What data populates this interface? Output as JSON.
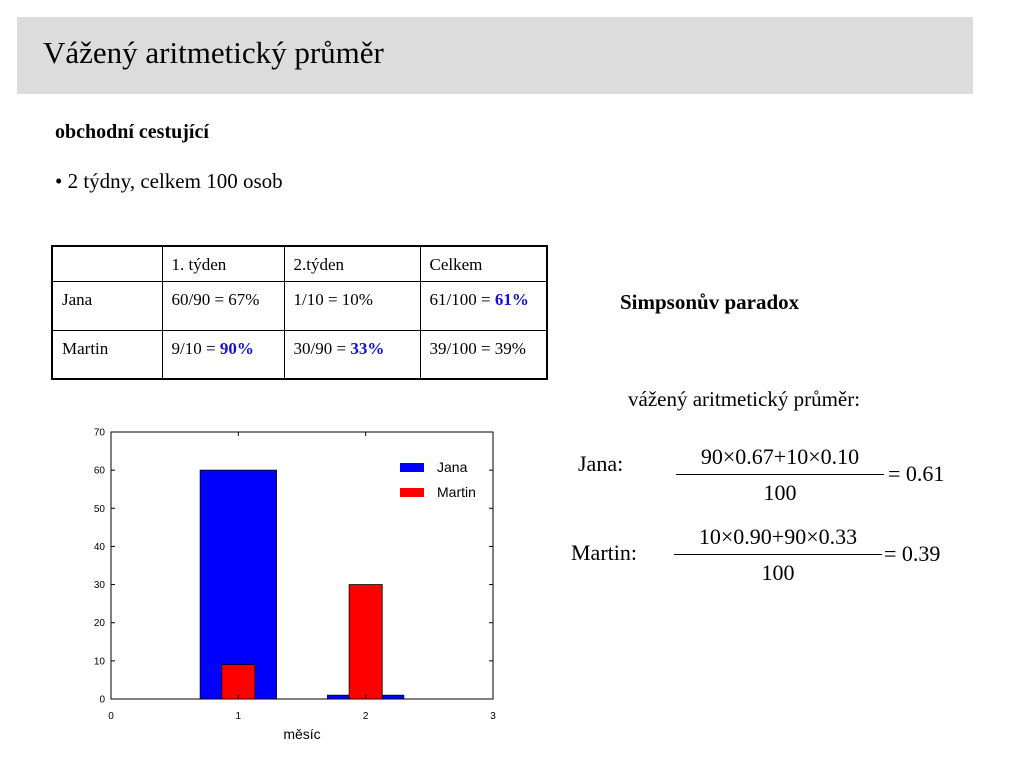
{
  "slide": {
    "title": "Vážený aritmetický průměr",
    "subheading": "obchodní cestující",
    "bullet": "• 2 týdny, celkem 100 osob",
    "paradox_label": "Simpsonův paradox",
    "weighted_label": "vážený aritmetický průměr:"
  },
  "table": {
    "headers": [
      "",
      "1. týden",
      "2.týden",
      "Celkem"
    ],
    "rows": [
      {
        "name": "Jana",
        "week1": {
          "text": "60/90 = 67%",
          "pre": "",
          "hl": ""
        },
        "week2": {
          "text": "1/10 = 10%",
          "pre": "",
          "hl": ""
        },
        "total": {
          "text": "",
          "pre": "61/100 = ",
          "hl": "61%"
        }
      },
      {
        "name": "Martin",
        "week1": {
          "text": "",
          "pre": "9/10 = ",
          "hl": "90%"
        },
        "week2": {
          "text": "",
          "pre": "30/90 = ",
          "hl": "33%"
        },
        "total": {
          "text": "39/100 = 39%",
          "pre": "",
          "hl": ""
        }
      }
    ]
  },
  "equations": [
    {
      "name": "Jana:",
      "numerator": "90×0.67+10×0.10",
      "denominator": "100",
      "result": "= 0.61"
    },
    {
      "name": "Martin:",
      "numerator": "10×0.90+90×0.33",
      "denominator": "100",
      "result": "= 0.39"
    }
  ],
  "chart_data": {
    "type": "bar",
    "xlabel": "měsíc",
    "ylabel": "",
    "xlim": [
      0,
      3
    ],
    "ylim": [
      0,
      70
    ],
    "xticks": [
      "0",
      "1",
      "2",
      "3"
    ],
    "yticks": [
      "0",
      "10",
      "20",
      "30",
      "40",
      "50",
      "60",
      "70"
    ],
    "legend_position": "top-right",
    "series": [
      {
        "name": "Jana",
        "color": "#0000ff",
        "x": [
          1,
          2
        ],
        "values": [
          60,
          1
        ],
        "width": 0.6
      },
      {
        "name": "Martin",
        "color": "#ff0000",
        "x": [
          1,
          2
        ],
        "values": [
          9,
          30
        ],
        "width": 0.26
      }
    ]
  }
}
